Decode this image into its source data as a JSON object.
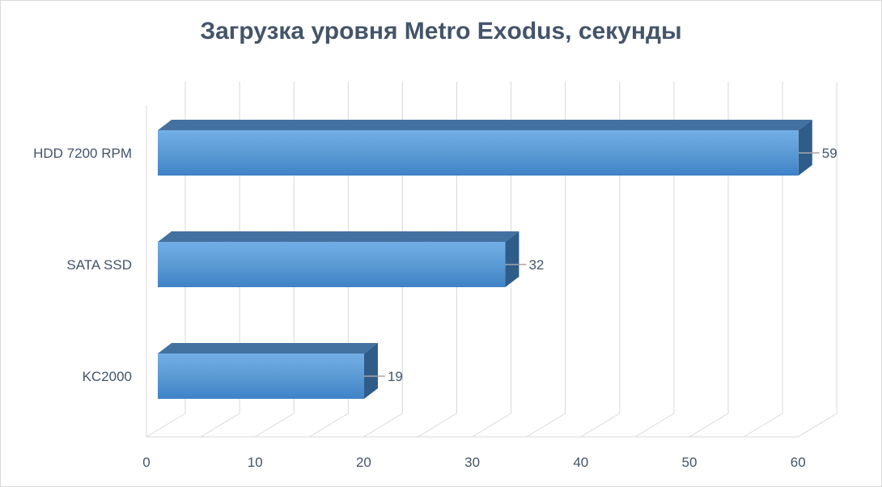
{
  "chart_data": {
    "type": "bar",
    "orientation": "horizontal",
    "style": "3d",
    "title": "Загрузка уровня Metro Exodus, секунды",
    "categories": [
      "HDD 7200 RPM",
      "SATA SSD",
      "KC2000"
    ],
    "values": [
      59,
      32,
      19
    ],
    "data_labels": [
      "59",
      "32",
      "19"
    ],
    "xlim": [
      0,
      60
    ],
    "x_ticks": [
      0,
      10,
      20,
      30,
      40,
      50,
      60
    ],
    "x_tick_labels": [
      "0",
      "10",
      "20",
      "30",
      "40",
      "50",
      "60"
    ],
    "grid": true,
    "legend": "none",
    "colors": {
      "bar_front": "#5b9bd5",
      "bar_top": "#4472a0",
      "bar_side": "#2f5d8a",
      "grid": "#d9d9d9",
      "text": "#44546a"
    }
  }
}
